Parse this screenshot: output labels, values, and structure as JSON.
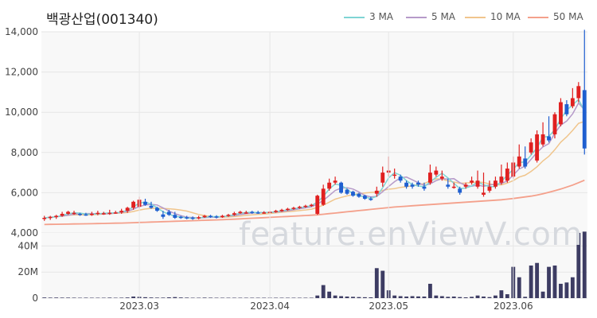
{
  "title": "백광산업(001340)",
  "watermark": "feature.enViewV.com",
  "legend": [
    {
      "name": "3 MA",
      "color": "#7fd4d4"
    },
    {
      "name": "5 MA",
      "color": "#b69ac9"
    },
    {
      "name": "10 MA",
      "color": "#f0c58c"
    },
    {
      "name": "50 MA",
      "color": "#f4a08b"
    }
  ],
  "colors": {
    "up": "#e02020",
    "down": "#1f5fd0",
    "volume": "#3d3c63",
    "grid": "#e6e6e6",
    "plot_bg": "#f8f8f8"
  },
  "chart_data": [
    {
      "type": "candlestick",
      "title": "백광산업(001340)",
      "ylim": [
        4000,
        14000
      ],
      "yticks": [
        4000,
        6000,
        8000,
        10000,
        12000,
        14000
      ],
      "ytick_labels": [
        "4,000",
        "6,000",
        "8,000",
        "10,000",
        "12,000",
        "14,000"
      ],
      "xticks": [
        {
          "index": 16,
          "label": "2023.03"
        },
        {
          "index": 38,
          "label": "2023.04"
        },
        {
          "index": 58,
          "label": "2023.05"
        },
        {
          "index": 79,
          "label": "2023.06"
        }
      ],
      "open": [
        4700,
        4750,
        4800,
        4850,
        4950,
        4980,
        4950,
        4920,
        4900,
        4950,
        4980,
        4960,
        5000,
        5020,
        5100,
        5250,
        5300,
        5550,
        5350,
        5250,
        4920,
        5050,
        4900,
        4800,
        4780,
        4760,
        4750,
        4780,
        4850,
        4820,
        4780,
        4850,
        4900,
        4980,
        5000,
        5050,
        5020,
        5000,
        5000,
        5050,
        5080,
        5150,
        5200,
        5250,
        5300,
        5350,
        4950,
        5400,
        6200,
        6500,
        6500,
        6150,
        6050,
        5950,
        5850,
        5700,
        5950,
        6500,
        7000,
        6900,
        6800,
        6500,
        6400,
        6500,
        6300,
        6500,
        6900,
        6700,
        6400,
        6300,
        6200,
        6300,
        6500,
        6300,
        5900,
        6100,
        6300,
        6500,
        6600,
        6800,
        7300,
        7700,
        8000,
        7600,
        8400,
        8800,
        8900,
        9400,
        10400,
        10300,
        10700,
        11100
      ],
      "close": [
        4750,
        4800,
        4850,
        4950,
        5050,
        5000,
        4920,
        4900,
        4950,
        5000,
        4980,
        5000,
        5020,
        5100,
        5250,
        5550,
        5650,
        5400,
        5250,
        5100,
        4800,
        4900,
        4750,
        4750,
        4720,
        4720,
        4780,
        4850,
        4800,
        4780,
        4850,
        4900,
        4980,
        5050,
        5020,
        5000,
        5000,
        5020,
        5050,
        5100,
        5150,
        5200,
        5250,
        5300,
        5350,
        5400,
        5850,
        6200,
        6500,
        6600,
        6000,
        5950,
        5850,
        5800,
        5700,
        5650,
        6100,
        7000,
        7100,
        6900,
        6600,
        6300,
        6300,
        6400,
        6200,
        7000,
        7100,
        6800,
        6300,
        6300,
        6000,
        6400,
        6600,
        6600,
        6000,
        6300,
        6600,
        6800,
        7200,
        7500,
        7800,
        7300,
        8500,
        8900,
        8900,
        8600,
        9900,
        10500,
        9900,
        10700,
        11300,
        8200
      ],
      "high": [
        4850,
        4850,
        4900,
        5050,
        5100,
        5100,
        5000,
        5000,
        5050,
        5100,
        5050,
        5150,
        5100,
        5200,
        5300,
        5600,
        5800,
        5700,
        5550,
        5300,
        5100,
        5150,
        5050,
        4850,
        4850,
        4820,
        4850,
        4900,
        4900,
        4880,
        4900,
        4950,
        5050,
        5100,
        5100,
        5100,
        5100,
        5080,
        5100,
        5150,
        5200,
        5250,
        5300,
        5350,
        5400,
        5450,
        5900,
        6400,
        6700,
        6800,
        6550,
        6200,
        6100,
        6000,
        5900,
        5800,
        6300,
        7300,
        7800,
        7200,
        6900,
        6600,
        6500,
        6600,
        6500,
        7400,
        7300,
        7100,
        6700,
        6500,
        6300,
        6500,
        6800,
        7100,
        7000,
        6600,
        6800,
        7400,
        7500,
        7800,
        8400,
        8300,
        8700,
        9100,
        9500,
        9800,
        10000,
        10700,
        10600,
        11200,
        11500,
        14100
      ],
      "low": [
        4600,
        4650,
        4700,
        4800,
        4900,
        4900,
        4850,
        4850,
        4850,
        4880,
        4900,
        4900,
        4950,
        4950,
        5000,
        5150,
        5200,
        5350,
        5200,
        5050,
        4700,
        4850,
        4700,
        4700,
        4680,
        4650,
        4680,
        4750,
        4750,
        4720,
        4750,
        4800,
        4850,
        4950,
        4950,
        4950,
        4950,
        4950,
        4980,
        5000,
        5050,
        5100,
        5150,
        5200,
        5250,
        5300,
        4900,
        5350,
        6100,
        6400,
        5950,
        5900,
        5800,
        5750,
        5650,
        5600,
        5800,
        6300,
        6800,
        6700,
        6500,
        6200,
        6200,
        6300,
        6100,
        6400,
        6800,
        6600,
        6200,
        6200,
        5900,
        6200,
        6400,
        6200,
        5800,
        6000,
        6200,
        6400,
        6500,
        6700,
        7200,
        7200,
        7900,
        7500,
        8300,
        8500,
        8700,
        9300,
        9800,
        10200,
        10500,
        7900
      ],
      "ma50": [
        4420,
        4425,
        4430,
        4435,
        4440,
        4445,
        4450,
        4455,
        4460,
        4465,
        4470,
        4478,
        4485,
        4492,
        4500,
        4510,
        4520,
        4530,
        4540,
        4550,
        4560,
        4570,
        4580,
        4590,
        4600,
        4610,
        4620,
        4630,
        4640,
        4650,
        4660,
        4670,
        4685,
        4700,
        4715,
        4730,
        4745,
        4760,
        4775,
        4790,
        4805,
        4820,
        4835,
        4850,
        4865,
        4880,
        4900,
        4930,
        4960,
        4990,
        5020,
        5050,
        5080,
        5110,
        5140,
        5170,
        5200,
        5230,
        5260,
        5290,
        5310,
        5330,
        5350,
        5370,
        5390,
        5410,
        5430,
        5450,
        5470,
        5490,
        5510,
        5530,
        5550,
        5570,
        5590,
        5610,
        5630,
        5650,
        5680,
        5710,
        5750,
        5790,
        5830,
        5880,
        5950,
        6020,
        6100,
        6180,
        6280,
        6380,
        6500,
        6620
      ]
    },
    {
      "type": "bar",
      "ylim": [
        0,
        50000000
      ],
      "yticks": [
        0,
        20000000,
        40000000
      ],
      "ytick_labels": [
        "0",
        "20M",
        "40M"
      ],
      "values": [
        500000,
        400000,
        450000,
        400000,
        400000,
        350000,
        300000,
        350000,
        300000,
        300000,
        300000,
        400000,
        300000,
        350000,
        500000,
        1200000,
        1000000,
        700000,
        500000,
        400000,
        400000,
        600000,
        800000,
        500000,
        400000,
        300000,
        300000,
        400000,
        350000,
        300000,
        300000,
        300000,
        300000,
        300000,
        300000,
        300000,
        300000,
        300000,
        300000,
        300000,
        300000,
        300000,
        300000,
        300000,
        300000,
        300000,
        2000000,
        10000000,
        5000000,
        2000000,
        1500000,
        1200000,
        1000000,
        800000,
        700000,
        600000,
        23000000,
        21000000,
        6000000,
        2000000,
        1500000,
        1200000,
        1500000,
        1300000,
        1200000,
        11000000,
        2000000,
        1500000,
        1000000,
        1200000,
        800000,
        600000,
        1000000,
        2000000,
        1200000,
        800000,
        2000000,
        6000000,
        3000000,
        24000000,
        16000000,
        1000000,
        25000000,
        27000000,
        5000000,
        24000000,
        25000000,
        11000000,
        12000000,
        16000000,
        50000000,
        51000000
      ]
    }
  ]
}
